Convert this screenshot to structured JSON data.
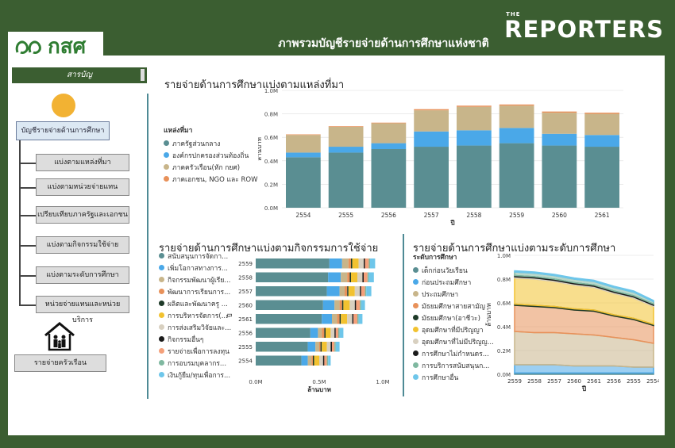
{
  "watermark": {
    "small": "THE",
    "big": "REPORTERS"
  },
  "logo": {
    "text": "กสศ"
  },
  "header": {
    "title": "ภาพรวมบัญชีรายจ่ายด้านการศึกษาแห่งชาติ"
  },
  "sidebar": {
    "toc": "สารบัญ",
    "main": "บัญชีรายจ่ายด้านการศึกษา",
    "items": [
      {
        "label": "แบ่งตามแหล่งที่มา"
      },
      {
        "label": "แบ่งตามหน่วยจ่ายแทน"
      },
      {
        "label": "เปรียบเทียบภาครัฐและเอกชน"
      },
      {
        "label": "แบ่งตามกิจกรรมใช้จ่าย"
      },
      {
        "label": "แบ่งตามระดับการศึกษา"
      },
      {
        "label": "หน่วยจ่ายแทนและหน่วยบริการ"
      }
    ],
    "household": "รายจ่ายครัวเรือน"
  },
  "chart_data": [
    {
      "type": "bar",
      "title": "รายจ่ายด้านการศึกษาแบ่งตามแหล่งที่มา",
      "legend_title": "แหล่งที่มา",
      "xlabel": "ปี",
      "ylabel": "ล้านบาท",
      "ylim": [
        0,
        1.0
      ],
      "yticks": [
        "0.0M",
        "0.2M",
        "0.4M",
        "0.6M",
        "0.8M",
        "1.0M"
      ],
      "categories": [
        "2554",
        "2555",
        "2556",
        "2557",
        "2558",
        "2559",
        "2560",
        "2561"
      ],
      "series": [
        {
          "name": "ภาครัฐส่วนกลาง",
          "color": "#5a8e92",
          "values": [
            0.43,
            0.47,
            0.5,
            0.52,
            0.53,
            0.55,
            0.53,
            0.52
          ]
        },
        {
          "name": "องค์กรปกครองส่วนท้องถิ่น",
          "color": "#4aa8e8",
          "values": [
            0.04,
            0.05,
            0.05,
            0.13,
            0.13,
            0.13,
            0.1,
            0.1
          ]
        },
        {
          "name": "ภาคครัวเรือน(หัก กยศ)",
          "color": "#c8b58a",
          "values": [
            0.15,
            0.17,
            0.17,
            0.18,
            0.2,
            0.19,
            0.18,
            0.18
          ]
        },
        {
          "name": "ภาคเอกชน, NGO และ ROW",
          "color": "#e8915a",
          "values": [
            0.005,
            0.005,
            0.005,
            0.01,
            0.01,
            0.01,
            0.01,
            0.01
          ]
        }
      ]
    },
    {
      "type": "bar",
      "orientation": "horizontal",
      "title": "รายจ่ายด้านการศึกษาแบ่งตามกิจกรรมการใช้จ่าย",
      "xlabel": "ล้านบาท",
      "ylabel": "ปี",
      "xlim": [
        0,
        1.0
      ],
      "xticks": [
        "0.0M",
        "0.5M",
        "1.0M"
      ],
      "categories": [
        "2559",
        "2558",
        "2557",
        "2560",
        "2561",
        "2556",
        "2555",
        "2554"
      ],
      "series": [
        {
          "name": "สนับสนุนการจัดกา...",
          "color": "#5a8e92",
          "values": [
            0.58,
            0.57,
            0.56,
            0.53,
            0.52,
            0.43,
            0.41,
            0.36
          ]
        },
        {
          "name": "เพิ่มโอกาสทางการ...",
          "color": "#4aa8e8",
          "values": [
            0.1,
            0.1,
            0.1,
            0.09,
            0.08,
            0.06,
            0.06,
            0.05
          ]
        },
        {
          "name": "กิจกรรมพัฒนาผู้เรีย...",
          "color": "#c8b58a",
          "values": [
            0.05,
            0.05,
            0.04,
            0.04,
            0.04,
            0.03,
            0.03,
            0.03
          ]
        },
        {
          "name": "พัฒนาการเรียนการ...",
          "color": "#e8915a",
          "values": [
            0.02,
            0.02,
            0.02,
            0.02,
            0.02,
            0.02,
            0.01,
            0.01
          ]
        },
        {
          "name": "ผลิตและพัฒนาครู ...",
          "color": "#1e3a28",
          "values": [
            0.01,
            0.01,
            0.01,
            0.01,
            0.01,
            0.01,
            0.01,
            0.01
          ]
        },
        {
          "name": "การบริหารจัดการ(...",
          "color": "#f2c230",
          "values": [
            0.05,
            0.05,
            0.05,
            0.05,
            0.05,
            0.04,
            0.04,
            0.04
          ]
        },
        {
          "name": "การส่งเสริมวิจัยและ...",
          "color": "#d8d0c0",
          "values": [
            0.04,
            0.04,
            0.04,
            0.04,
            0.04,
            0.03,
            0.03,
            0.03
          ]
        },
        {
          "name": "กิจกรรมอื่นๆ",
          "color": "#1b1b1b",
          "values": [
            0.01,
            0.01,
            0.01,
            0.01,
            0.01,
            0.01,
            0.01,
            0.01
          ]
        },
        {
          "name": "รายจ่ายเพื่อการลงทุน",
          "color": "#f4a07a",
          "values": [
            0.03,
            0.03,
            0.03,
            0.03,
            0.03,
            0.02,
            0.02,
            0.02
          ]
        },
        {
          "name": "การอบรมบุคลากร...",
          "color": "#7fb8a0",
          "values": [
            0.01,
            0.01,
            0.01,
            0.01,
            0.01,
            0.01,
            0.01,
            0.01
          ]
        },
        {
          "name": "เงินกู้ยืม/ทุนเพื่อการ...",
          "color": "#6ec6ea",
          "values": [
            0.04,
            0.04,
            0.04,
            0.03,
            0.03,
            0.03,
            0.03,
            0.02
          ]
        }
      ]
    },
    {
      "type": "area",
      "title": "รายจ่ายด้านการศึกษาแบ่งตามระดับการศึกษา",
      "legend_title": "ระดับการศึกษา",
      "xlabel": "ปี",
      "ylabel": "ล้านบาท",
      "ylim": [
        0,
        1.0
      ],
      "yticks": [
        "0.0M",
        "0.2M",
        "0.4M",
        "0.6M",
        "0.8M",
        "1.0M"
      ],
      "categories": [
        "2559",
        "2558",
        "2557",
        "2560",
        "2561",
        "2556",
        "2555",
        "2554"
      ],
      "series": [
        {
          "name": "เด็กก่อนวัยเรียน",
          "color": "#5a8e92",
          "values": [
            0.01,
            0.01,
            0.01,
            0.01,
            0.01,
            0.01,
            0.01,
            0.01
          ]
        },
        {
          "name": "ก่อนประถมศึกษา",
          "color": "#4aa8e8",
          "values": [
            0.07,
            0.07,
            0.07,
            0.06,
            0.06,
            0.06,
            0.05,
            0.05
          ]
        },
        {
          "name": "ประถมศึกษา",
          "color": "#c8b58a",
          "values": [
            0.28,
            0.27,
            0.27,
            0.27,
            0.26,
            0.24,
            0.23,
            0.2
          ]
        },
        {
          "name": "มัธยมศึกษาสายสามัญ",
          "color": "#e8915a",
          "values": [
            0.22,
            0.22,
            0.21,
            0.2,
            0.2,
            0.18,
            0.17,
            0.15
          ]
        },
        {
          "name": "มัธยมศึกษา(อาชีวะ)",
          "color": "#1e3a28",
          "values": [
            0.01,
            0.01,
            0.01,
            0.01,
            0.01,
            0.01,
            0.01,
            0.01
          ]
        },
        {
          "name": "อุดมศึกษาที่มีปริญญา",
          "color": "#f2c230",
          "values": [
            0.22,
            0.22,
            0.21,
            0.2,
            0.19,
            0.18,
            0.17,
            0.15
          ]
        },
        {
          "name": "อุดมศึกษาที่ไม่มีปริญญ...",
          "color": "#d8d0c0",
          "values": [
            0.01,
            0.01,
            0.01,
            0.01,
            0.01,
            0.01,
            0.01,
            0.01
          ]
        },
        {
          "name": "การศึกษาไม่กำหนดร...",
          "color": "#1b1b1b",
          "values": [
            0.01,
            0.01,
            0.01,
            0.01,
            0.01,
            0.01,
            0.01,
            0.01
          ]
        },
        {
          "name": "การบริการสนับสนุนก...",
          "color": "#7fb8a0",
          "values": [
            0.03,
            0.03,
            0.03,
            0.03,
            0.03,
            0.03,
            0.03,
            0.02
          ]
        },
        {
          "name": "การศึกษาอื่น",
          "color": "#6ec6ea",
          "values": [
            0.01,
            0.01,
            0.01,
            0.01,
            0.01,
            0.01,
            0.01,
            0.01
          ]
        }
      ]
    }
  ]
}
